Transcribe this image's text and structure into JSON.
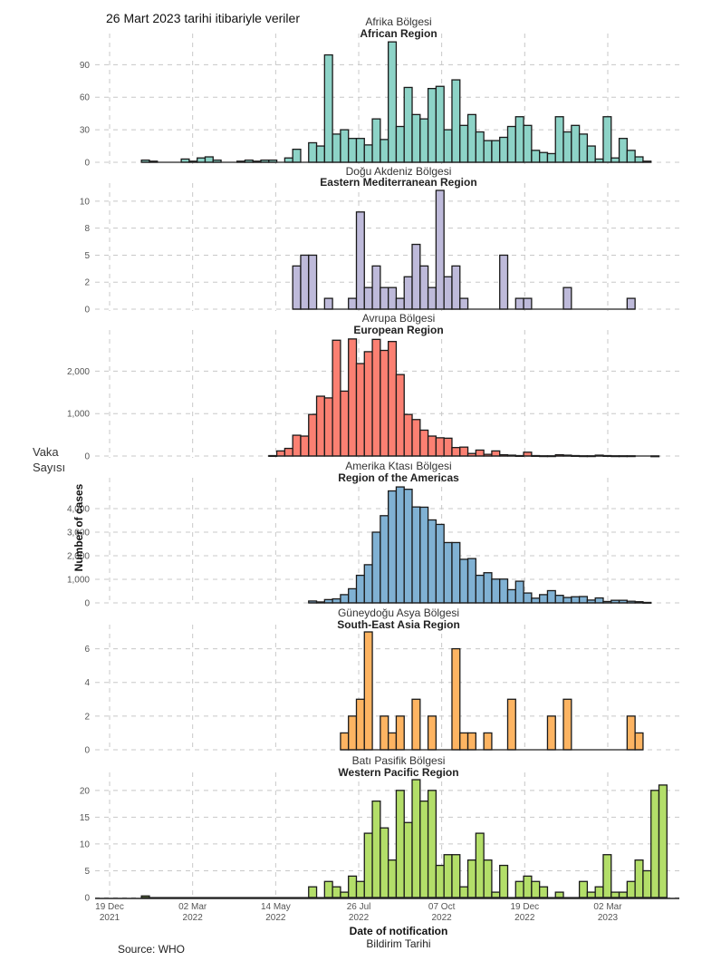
{
  "header_note": "26 Mart 2023 tarihi itibariyle veriler",
  "side_label": [
    "Vaka",
    "Sayısı"
  ],
  "source": "Source: WHO",
  "chart_data": {
    "type": "bar",
    "title": "",
    "xlabel": "Date of notification",
    "xlabel_tr": "Bildirim Tarihi",
    "ylabel": "Number of cases",
    "bin": "weekly",
    "x_start": "2021-12-19",
    "x_ticks": [
      {
        "label": [
          "19 Dec",
          "2021"
        ],
        "week": 0
      },
      {
        "label": [
          "02 Mar",
          "2022"
        ],
        "week": 10.43
      },
      {
        "label": [
          "14 May",
          "2022"
        ],
        "week": 20.86
      },
      {
        "label": [
          "26 Jul",
          "2022"
        ],
        "week": 31.29
      },
      {
        "label": [
          "07 Oct",
          "2022"
        ],
        "week": 41.71
      },
      {
        "label": [
          "19 Dec",
          "2022"
        ],
        "week": 52.14
      },
      {
        "label": [
          "02 Mar",
          "2023"
        ],
        "week": 62.57
      }
    ],
    "x_range_weeks": [
      -1.5,
      70
    ],
    "grid": true,
    "facets": [
      {
        "name_tr": "Afrika Bölgesi",
        "name_en": "African Region",
        "color": "#8dd3c7",
        "y_ticks": [
          0,
          30,
          60,
          90
        ],
        "y_tick_labels": [
          "0",
          "30",
          "60",
          "90"
        ],
        "ylim": [
          0,
          112
        ],
        "start_week": 4,
        "values": [
          2,
          1,
          0,
          0,
          0,
          3,
          1,
          4,
          5,
          2,
          0,
          0,
          1,
          2,
          1,
          2,
          2,
          0,
          4,
          12,
          0,
          18,
          15,
          99,
          26,
          30,
          22,
          22,
          16,
          40,
          21,
          111,
          33,
          69,
          44,
          40,
          68,
          70,
          30,
          76,
          34,
          44,
          28,
          20,
          20,
          23,
          33,
          42,
          34,
          11,
          9,
          8,
          42,
          28,
          34,
          26,
          15,
          3,
          42,
          4,
          22,
          11,
          5,
          1
        ],
        "y_tick_values": [
          0,
          30,
          60,
          90
        ]
      },
      {
        "name_tr": "Doğu Akdeniz  Bölgesi",
        "name_en": "Eastern Mediterranean Region",
        "color": "#bebada",
        "y_ticks": [
          0,
          2,
          5,
          8,
          10
        ],
        "y_tick_labels": [
          "0",
          "2",
          "5",
          "8",
          "10"
        ],
        "ylim": [
          0,
          11
        ],
        "start_week": 23,
        "values": [
          4,
          5,
          5,
          0,
          1,
          0,
          0,
          1,
          9,
          2,
          4,
          2,
          2,
          1,
          3,
          6,
          4,
          2,
          11,
          3,
          4,
          1,
          0,
          0,
          0,
          0,
          5,
          0,
          1,
          1,
          0,
          0,
          0,
          0,
          2,
          0,
          0,
          0,
          0,
          0,
          0,
          0,
          1
        ],
        "y_tick_values": [
          0,
          2.5,
          5,
          7.5,
          10
        ]
      },
      {
        "name_tr": "Avrupa Bölgesi",
        "name_en": "European Region",
        "color": "#fb8072",
        "y_ticks": [
          0,
          1000,
          2000
        ],
        "y_tick_labels": [
          "0",
          "1,000",
          "2,000"
        ],
        "ylim": [
          0,
          2800
        ],
        "start_week": 20,
        "values": [
          10,
          120,
          180,
          490,
          470,
          980,
          1410,
          1370,
          2730,
          1530,
          2760,
          2180,
          2460,
          2750,
          2490,
          2700,
          1920,
          980,
          860,
          610,
          470,
          430,
          420,
          200,
          210,
          60,
          140,
          40,
          120,
          30,
          20,
          10,
          90,
          10,
          5,
          5,
          30,
          20,
          10,
          5,
          5,
          20,
          10,
          5,
          5,
          5,
          0,
          0,
          2
        ],
        "y_tick_values": [
          0,
          1000,
          2000
        ]
      },
      {
        "name_tr": "Amerika Ktası Bölgesi",
        "name_en": "Region of the Americas",
        "color": "#80b1d3",
        "y_ticks": [
          0,
          1000,
          2000,
          3000,
          4000
        ],
        "y_tick_labels": [
          "0",
          "1,000",
          "2,000",
          "3,000",
          "4,000"
        ],
        "ylim": [
          0,
          5000
        ],
        "start_week": 25,
        "values": [
          80,
          40,
          140,
          170,
          350,
          600,
          1170,
          1620,
          3000,
          3700,
          4750,
          4920,
          4820,
          4070,
          4060,
          3520,
          3330,
          2560,
          2560,
          1850,
          1880,
          1170,
          1280,
          1010,
          1010,
          560,
          920,
          420,
          200,
          350,
          520,
          320,
          230,
          260,
          270,
          120,
          210,
          60,
          110,
          110,
          70,
          50,
          20
        ],
        "y_tick_values": [
          0,
          1000,
          2000,
          3000,
          4000
        ]
      },
      {
        "name_tr": "Güneydoğu Asya Bölgesi",
        "name_en": "South-East Asia Region",
        "color": "#fdb462",
        "y_ticks": [
          0,
          2,
          4,
          6
        ],
        "y_tick_labels": [
          "0",
          "2",
          "4",
          "6"
        ],
        "ylim": [
          0,
          7
        ],
        "start_week": 29,
        "values": [
          1,
          2,
          3,
          7,
          0,
          2,
          1,
          2,
          0,
          3,
          0,
          2,
          0,
          0,
          6,
          1,
          1,
          0,
          1,
          0,
          0,
          3,
          0,
          0,
          0,
          0,
          2,
          0,
          3,
          0,
          0,
          0,
          0,
          0,
          0,
          0,
          2,
          1
        ],
        "y_tick_values": [
          0,
          2,
          4,
          6
        ]
      },
      {
        "name_tr": "Batı Pasifik Bölgesi",
        "name_en": "Western Pacific Region",
        "color": "#b3de69",
        "y_ticks": [
          0,
          5,
          10,
          15,
          20
        ],
        "y_tick_labels": [
          "0",
          "5",
          "10",
          "15",
          "20"
        ],
        "ylim": [
          0,
          22
        ],
        "start_week": 4,
        "values": [
          0.3,
          0,
          0,
          0,
          0,
          0,
          0,
          0,
          0,
          0,
          0,
          0,
          0,
          0,
          0,
          0,
          0,
          0,
          0,
          0,
          0,
          2,
          0,
          3,
          2,
          1,
          4,
          3,
          12,
          18,
          13,
          7,
          20,
          14,
          22,
          18,
          20,
          6,
          8,
          8,
          2,
          7,
          12,
          7,
          1,
          6,
          0,
          3,
          4,
          3,
          2,
          0,
          1,
          0,
          0,
          3,
          1,
          2,
          8,
          1,
          1,
          3,
          7,
          5,
          20,
          21
        ],
        "y_tick_values": [
          0,
          5,
          10,
          15,
          20
        ]
      }
    ]
  }
}
